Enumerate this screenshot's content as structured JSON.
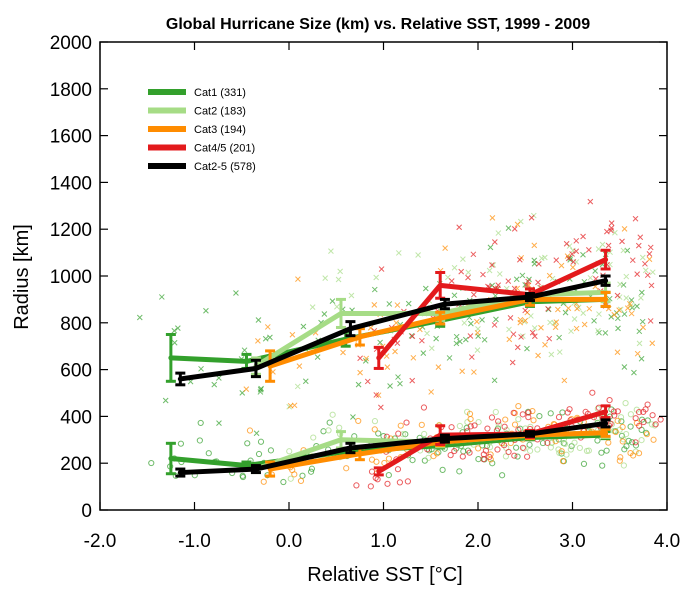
{
  "chart_data": {
    "type": "line",
    "title": "Global Hurricane Size (km) vs. Relative SST, 1999 - 2009",
    "xlabel": "Relative SST [°C]",
    "ylabel": "Radius [km]",
    "xlim": [
      -2.0,
      4.0
    ],
    "ylim": [
      0,
      2000
    ],
    "x_ticks": [
      -2.0,
      -1.0,
      0.0,
      1.0,
      2.0,
      3.0,
      4.0
    ],
    "x_tick_labels": [
      "-2.0",
      "-1.0",
      "0.0",
      "1.0",
      "2.0",
      "3.0",
      "4.0"
    ],
    "y_ticks": [
      0,
      200,
      400,
      600,
      800,
      1000,
      1200,
      1400,
      1600,
      1800,
      2000
    ],
    "y_tick_labels": [
      "0",
      "200",
      "400",
      "600",
      "800",
      "1000",
      "1200",
      "1400",
      "1600",
      "1800",
      "2000"
    ],
    "grid": false,
    "legend_position": "top-left",
    "series": [
      {
        "name": "Cat1 (331)",
        "color": "#33a02c",
        "marker": "x+o",
        "outer_x": [
          -1.25,
          -0.45,
          0.6,
          1.6,
          2.55,
          3.35
        ],
        "outer_y": [
          650,
          635,
          730,
          810,
          890,
          900
        ],
        "outer_err": [
          100,
          30,
          30,
          25,
          20,
          30
        ],
        "inner_x": [
          -1.25,
          -0.45,
          0.6,
          1.6,
          2.55,
          3.35
        ],
        "inner_y": [
          220,
          190,
          250,
          275,
          310,
          320
        ],
        "inner_err": [
          65,
          15,
          15,
          10,
          10,
          15
        ]
      },
      {
        "name": "Cat2 (183)",
        "color": "#a6dc86",
        "marker": "x+o",
        "outer_x": [
          -0.35,
          0.55,
          1.6,
          2.55,
          3.35
        ],
        "outer_y": [
          615,
          840,
          840,
          920,
          930
        ],
        "outer_err": [
          35,
          60,
          30,
          25,
          40
        ],
        "inner_x": [
          -0.35,
          0.55,
          1.6,
          2.55,
          3.35
        ],
        "inner_y": [
          175,
          300,
          290,
          320,
          330
        ],
        "inner_err": [
          15,
          35,
          20,
          15,
          20
        ]
      },
      {
        "name": "Cat3 (194)",
        "color": "#ff8c00",
        "marker": "x+o",
        "outer_x": [
          -0.2,
          0.75,
          1.6,
          2.55,
          3.35
        ],
        "outer_y": [
          615,
          740,
          820,
          900,
          900
        ],
        "outer_err": [
          65,
          35,
          25,
          25,
          30
        ],
        "inner_x": [
          -0.2,
          0.75,
          1.6,
          2.55,
          3.35
        ],
        "inner_y": [
          175,
          240,
          290,
          320,
          330
        ],
        "inner_err": [
          30,
          25,
          15,
          15,
          15
        ]
      },
      {
        "name": "Cat4/5 (201)",
        "color": "#e31a1c",
        "marker": "x+o",
        "outer_x": [
          0.95,
          1.6,
          2.55,
          3.35
        ],
        "outer_y": [
          650,
          960,
          920,
          1070
        ],
        "outer_err": [
          45,
          55,
          25,
          40
        ],
        "inner_x": [
          0.95,
          1.6,
          2.55,
          3.35
        ],
        "inner_y": [
          165,
          320,
          325,
          420
        ],
        "inner_err": [
          15,
          40,
          15,
          25
        ]
      },
      {
        "name": "Cat2-5 (578)",
        "color": "#000000",
        "marker": "x+o",
        "outer_x": [
          -1.15,
          -0.35,
          0.65,
          1.65,
          2.55,
          3.35
        ],
        "outer_y": [
          560,
          605,
          775,
          880,
          910,
          980
        ],
        "outer_err": [
          25,
          35,
          30,
          20,
          15,
          20
        ],
        "inner_x": [
          -1.15,
          -0.35,
          0.65,
          1.65,
          2.55,
          3.35
        ],
        "inner_y": [
          160,
          175,
          265,
          305,
          325,
          370
        ],
        "inner_err": [
          15,
          15,
          20,
          15,
          10,
          15
        ]
      }
    ]
  }
}
